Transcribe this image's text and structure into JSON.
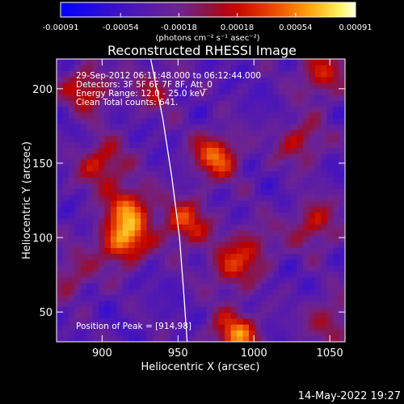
{
  "chart_data": {
    "type": "heatmap",
    "title": "Reconstructed RHESSI Image",
    "xlabel": "Heliocentric X (arcsec)",
    "ylabel": "Heliocentric Y (arcsec)",
    "xlim": [
      870,
      1060
    ],
    "ylim": [
      30,
      220
    ],
    "x_ticks": [
      900,
      950,
      1000,
      1050
    ],
    "y_ticks": [
      50,
      100,
      150,
      200
    ],
    "grid": false,
    "colorbar": {
      "location": "top",
      "min": -0.00091,
      "max": 0.00091,
      "tick_values": [
        -0.00091,
        -0.00054,
        -0.00018,
        0.00018,
        0.00054,
        0.00091
      ],
      "tick_labels": [
        "-0.00091",
        "-0.00054",
        "-0.00018",
        "0.00018",
        "0.00054",
        "0.00091"
      ],
      "units_label": "(photons cm⁻² s⁻¹ asec⁻²)"
    },
    "annotations": [
      "29-Sep-2012 06:11:48.000 to 06:12:44.000",
      "Detectors: 3F 5F 6F 7F 8F, Att_0",
      "Energy Range: 12.0 - 25.0 keV",
      "Clean     Total counts: 641."
    ],
    "peak_label": "Position of Peak = [914,98]",
    "peak_position": [
      914,
      98
    ],
    "limb_curve": [
      [
        932,
        220
      ],
      [
        940,
        180
      ],
      [
        946,
        140
      ],
      [
        951,
        100
      ],
      [
        954,
        60
      ],
      [
        956,
        30
      ]
    ],
    "bright_sources": [
      {
        "x": 914,
        "y": 98,
        "value": 0.00091
      },
      {
        "x": 918,
        "y": 120,
        "value": 0.00075
      },
      {
        "x": 900,
        "y": 150,
        "value": 0.00062
      },
      {
        "x": 890,
        "y": 200,
        "value": 0.0006
      },
      {
        "x": 975,
        "y": 155,
        "value": 0.0008
      },
      {
        "x": 988,
        "y": 35,
        "value": 0.00085
      },
      {
        "x": 955,
        "y": 110,
        "value": 0.0007
      },
      {
        "x": 1000,
        "y": 95,
        "value": 0.0004
      },
      {
        "x": 1045,
        "y": 210,
        "value": 0.0006
      },
      {
        "x": 1040,
        "y": 110,
        "value": 0.00055
      },
      {
        "x": 1030,
        "y": 165,
        "value": 0.0005
      },
      {
        "x": 985,
        "y": 80,
        "value": 0.00055
      },
      {
        "x": 880,
        "y": 75,
        "value": 0.0004
      },
      {
        "x": 1050,
        "y": 45,
        "value": 0.00045
      },
      {
        "x": 935,
        "y": 200,
        "value": 0.0004
      }
    ]
  },
  "footer": {
    "date_stamp": "14-May-2022 19:27"
  }
}
